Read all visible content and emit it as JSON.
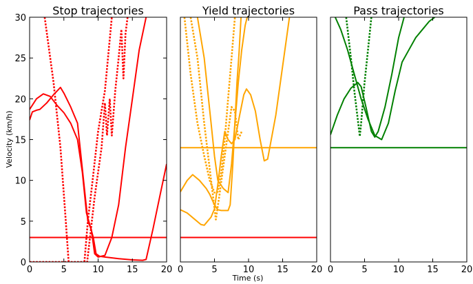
{
  "figure": {
    "ylabel": "Velocity (km/h)",
    "xlabel": "Time (s)"
  },
  "chart_data": [
    {
      "type": "line",
      "title": "Stop trajectories",
      "xlim": [
        0,
        20
      ],
      "ylim": [
        0,
        30
      ],
      "xticks": [
        0,
        5,
        10,
        15,
        20
      ],
      "yticks": [
        0,
        5,
        10,
        15,
        20,
        25,
        30
      ],
      "show_yticks": true,
      "grid": false,
      "series": [
        {
          "color": "#ff0000",
          "style": "solid",
          "points": [
            [
              0,
              17.4
            ],
            [
              0.4,
              18.4
            ],
            [
              1,
              18.6
            ],
            [
              1.5,
              18.7
            ],
            [
              2.5,
              19.5
            ],
            [
              3.5,
              20.5
            ],
            [
              4.5,
              21.4
            ],
            [
              5,
              20.7
            ],
            [
              6,
              19
            ],
            [
              7,
              17
            ],
            [
              8,
              9
            ],
            [
              8.5,
              5
            ],
            [
              9,
              4
            ],
            [
              9.5,
              1
            ],
            [
              10,
              0.6
            ],
            [
              11,
              0.8
            ],
            [
              12,
              3
            ],
            [
              13,
              7
            ],
            [
              14,
              14
            ],
            [
              15,
              20
            ],
            [
              16,
              26
            ],
            [
              17,
              30
            ]
          ]
        },
        {
          "color": "#ff0000",
          "style": "solid",
          "points": [
            [
              0,
              18.7
            ],
            [
              1,
              20
            ],
            [
              2,
              20.6
            ],
            [
              3,
              20.3
            ],
            [
              4,
              19.2
            ],
            [
              5,
              18.3
            ],
            [
              6,
              17
            ],
            [
              7,
              15
            ],
            [
              7.7,
              11
            ],
            [
              8.3,
              6
            ],
            [
              8.8,
              4.5
            ],
            [
              9.3,
              3
            ],
            [
              9.7,
              1
            ],
            [
              10.2,
              0.7
            ],
            [
              11,
              0.6
            ],
            [
              13,
              0.4
            ],
            [
              15,
              0.25
            ],
            [
              16.5,
              0.2
            ],
            [
              17,
              0.3
            ],
            [
              18,
              4
            ],
            [
              19,
              8
            ],
            [
              20,
              12
            ]
          ]
        },
        {
          "color": "#ff0000",
          "style": "solid",
          "points": [
            [
              0,
              3
            ],
            [
              20,
              3
            ]
          ]
        },
        {
          "color": "#ff0000",
          "style": "dotted",
          "points": [
            [
              2.2,
              30
            ],
            [
              3.5,
              22
            ],
            [
              4.5,
              14
            ],
            [
              5.2,
              6
            ],
            [
              5.7,
              0
            ]
          ]
        },
        {
          "color": "#ff0000",
          "style": "dotted",
          "points": [
            [
              0,
              0
            ],
            [
              8.4,
              0
            ],
            [
              9.5,
              8
            ],
            [
              10.5,
              14
            ],
            [
              11,
              19.5
            ],
            [
              11.3,
              15.5
            ],
            [
              11.7,
              20
            ],
            [
              12,
              15.5
            ],
            [
              12.5,
              21
            ],
            [
              13,
              25
            ],
            [
              13.4,
              28.5
            ],
            [
              13.7,
              22.5
            ],
            [
              14,
              28
            ],
            [
              14.3,
              30
            ]
          ]
        },
        {
          "color": "#ff0000",
          "style": "dotted",
          "points": [
            [
              8,
              0
            ],
            [
              8.5,
              5
            ],
            [
              9.2,
              10
            ],
            [
              10,
              16
            ],
            [
              11,
              21
            ],
            [
              12,
              30
            ]
          ]
        }
      ]
    },
    {
      "type": "line",
      "title": "Yield trajectories",
      "xlim": [
        0,
        20
      ],
      "ylim": [
        0,
        30
      ],
      "xticks": [
        0,
        5,
        10,
        15,
        20
      ],
      "yticks": [
        0,
        5,
        10,
        15,
        20,
        25,
        30
      ],
      "show_yticks": false,
      "grid": false,
      "series": [
        {
          "color": "#ffa500",
          "style": "solid",
          "points": [
            [
              0,
              8.6
            ],
            [
              1,
              10
            ],
            [
              1.8,
              10.7
            ],
            [
              2.8,
              10
            ],
            [
              3.8,
              9
            ],
            [
              4.3,
              8.3
            ],
            [
              5,
              7
            ],
            [
              5.5,
              6.4
            ],
            [
              6,
              6.3
            ],
            [
              7,
              6.3
            ],
            [
              7.3,
              7
            ],
            [
              7.7,
              12
            ],
            [
              8,
              17
            ],
            [
              8.3,
              22
            ],
            [
              8.6,
              25.5
            ],
            [
              8.9,
              30
            ]
          ]
        },
        {
          "color": "#ffa500",
          "style": "solid",
          "points": [
            [
              0,
              6.4
            ],
            [
              1,
              6
            ],
            [
              2,
              5.3
            ],
            [
              3,
              4.6
            ],
            [
              3.5,
              4.5
            ],
            [
              4.5,
              5.5
            ],
            [
              5,
              6.5
            ],
            [
              5.5,
              9.5
            ],
            [
              6,
              13
            ],
            [
              6.5,
              16
            ],
            [
              7,
              15
            ],
            [
              7.5,
              14.5
            ],
            [
              8,
              15
            ],
            [
              8.7,
              18
            ],
            [
              9.3,
              20.5
            ],
            [
              9.7,
              21.2
            ],
            [
              10.3,
              20.5
            ],
            [
              11,
              18.5
            ],
            [
              11.7,
              15
            ],
            [
              12.3,
              12.4
            ],
            [
              12.8,
              12.6
            ],
            [
              14,
              18
            ],
            [
              15,
              24
            ],
            [
              16,
              30
            ]
          ]
        },
        {
          "color": "#ffa500",
          "style": "solid",
          "points": [
            [
              2.5,
              30
            ],
            [
              3.5,
              25
            ],
            [
              4.5,
              17
            ],
            [
              5,
              13
            ],
            [
              5.5,
              10
            ],
            [
              6.3,
              9
            ],
            [
              7,
              8.5
            ],
            [
              7.5,
              12
            ],
            [
              8,
              17
            ],
            [
              8.5,
              22
            ],
            [
              9,
              26
            ],
            [
              9.5,
              29
            ],
            [
              9.8,
              30
            ]
          ]
        },
        {
          "color": "#ffa500",
          "style": "solid",
          "points": [
            [
              0,
              14
            ],
            [
              20,
              14
            ]
          ]
        },
        {
          "color": "#ff0000",
          "style": "solid",
          "points": [
            [
              0,
              3
            ],
            [
              20,
              3
            ]
          ]
        },
        {
          "color": "#ffa500",
          "style": "dotted",
          "points": [
            [
              0.6,
              30
            ],
            [
              1.5,
              23
            ],
            [
              2.5,
              17
            ],
            [
              3.5,
              13
            ],
            [
              4.3,
              10
            ],
            [
              5,
              8.5
            ],
            [
              5.5,
              8.6
            ],
            [
              6,
              11
            ],
            [
              6.5,
              15
            ],
            [
              7,
              20
            ],
            [
              7.5,
              25
            ],
            [
              8,
              30
            ]
          ]
        },
        {
          "color": "#ffa500",
          "style": "dotted",
          "points": [
            [
              1.5,
              30
            ],
            [
              2.5,
              25
            ],
            [
              3.5,
              17
            ],
            [
              4.5,
              10
            ],
            [
              5.2,
              5.2
            ],
            [
              5.7,
              8
            ],
            [
              6.5,
              13
            ],
            [
              7.5,
              19
            ],
            [
              8,
              18.5
            ],
            [
              8.5,
              15
            ],
            [
              9,
              16
            ]
          ]
        }
      ]
    },
    {
      "type": "line",
      "title": "Pass trajectories",
      "xlim": [
        0,
        20
      ],
      "ylim": [
        0,
        30
      ],
      "xticks": [
        0,
        5,
        10,
        15,
        20
      ],
      "yticks": [
        0,
        5,
        10,
        15,
        20,
        25,
        30
      ],
      "show_yticks": false,
      "grid": false,
      "series": [
        {
          "color": "#008000",
          "style": "solid",
          "points": [
            [
              0,
              15.6
            ],
            [
              1,
              18
            ],
            [
              2,
              20
            ],
            [
              3,
              21.3
            ],
            [
              4,
              22
            ],
            [
              4.5,
              21.5
            ],
            [
              5.2,
              19
            ],
            [
              6,
              16
            ],
            [
              6.5,
              15.3
            ],
            [
              7,
              16
            ],
            [
              8,
              19
            ],
            [
              9,
              23
            ],
            [
              10,
              27.5
            ],
            [
              10.8,
              30
            ]
          ]
        },
        {
          "color": "#008000",
          "style": "solid",
          "points": [
            [
              0.7,
              30
            ],
            [
              1.5,
              28.5
            ],
            [
              2.5,
              26
            ],
            [
              3.5,
              23
            ],
            [
              4.5,
              20
            ],
            [
              5.5,
              17.5
            ],
            [
              6.5,
              15.5
            ],
            [
              7.5,
              15
            ],
            [
              8.5,
              17
            ],
            [
              9.5,
              21
            ],
            [
              10.5,
              24.5
            ],
            [
              11.5,
              26
            ],
            [
              12.5,
              27.5
            ],
            [
              13.5,
              28.5
            ],
            [
              14.5,
              29.5
            ],
            [
              15.3,
              30
            ]
          ]
        },
        {
          "color": "#008000",
          "style": "solid",
          "points": [
            [
              0,
              14
            ],
            [
              20,
              14
            ]
          ]
        },
        {
          "color": "#008000",
          "style": "dotted",
          "points": [
            [
              2.3,
              30
            ],
            [
              3,
              25
            ],
            [
              3.5,
              21
            ],
            [
              4,
              17.5
            ],
            [
              4.3,
              15.4
            ],
            [
              4.5,
              17
            ],
            [
              5,
              22
            ],
            [
              5.5,
              26
            ],
            [
              6,
              30
            ]
          ]
        }
      ]
    }
  ]
}
